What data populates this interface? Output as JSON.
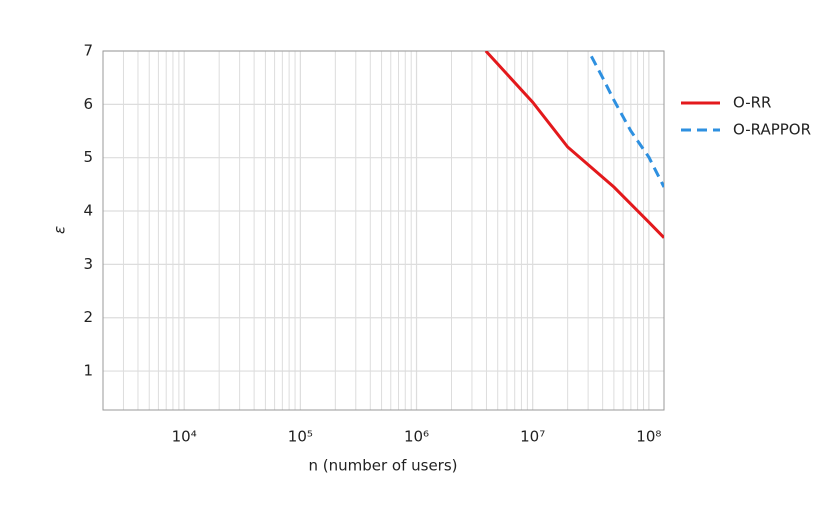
{
  "chart_data": {
    "type": "line",
    "x_label": "n (number of users)",
    "y_label": "ε",
    "x_scale": "log",
    "grid": true,
    "legend": "outside right",
    "xlim": [
      2000,
      135000000
    ],
    "ylim": [
      0.27,
      7
    ],
    "xticks": [
      {
        "value": 10000,
        "label": "10⁴"
      },
      {
        "value": 100000,
        "label": "10⁵"
      },
      {
        "value": 1000000,
        "label": "10⁶"
      },
      {
        "value": 10000000,
        "label": "10⁷"
      },
      {
        "value": 100000000,
        "label": "10⁸"
      }
    ],
    "xticks_minor": [
      2000,
      3000,
      4000,
      5000,
      6000,
      7000,
      8000,
      9000,
      20000,
      30000,
      40000,
      50000,
      60000,
      70000,
      80000,
      90000,
      200000,
      300000,
      400000,
      500000,
      600000,
      700000,
      800000,
      900000,
      2000000,
      3000000,
      4000000,
      5000000,
      6000000,
      7000000,
      8000000,
      9000000,
      20000000,
      30000000,
      40000000,
      50000000,
      60000000,
      70000000,
      80000000,
      90000000
    ],
    "yticks": [
      1,
      2,
      3,
      4,
      5,
      6,
      7
    ],
    "series": [
      {
        "name": "O-RR",
        "color": "#e3191c",
        "dash": "solid",
        "x": [
          3950000,
          10000000,
          20000000,
          50000000,
          100000000,
          135000000
        ],
        "values": [
          7.0,
          6.04,
          5.2,
          4.45,
          3.79,
          3.5
        ]
      },
      {
        "name": "O-RAPPOR",
        "color": "#2e90e0",
        "dash": "dashed",
        "x": [
          32000000,
          40000000,
          50000000,
          70000000,
          100000000,
          135000000
        ],
        "values": [
          6.9,
          6.5,
          6.08,
          5.5,
          5.01,
          4.45
        ]
      }
    ]
  }
}
